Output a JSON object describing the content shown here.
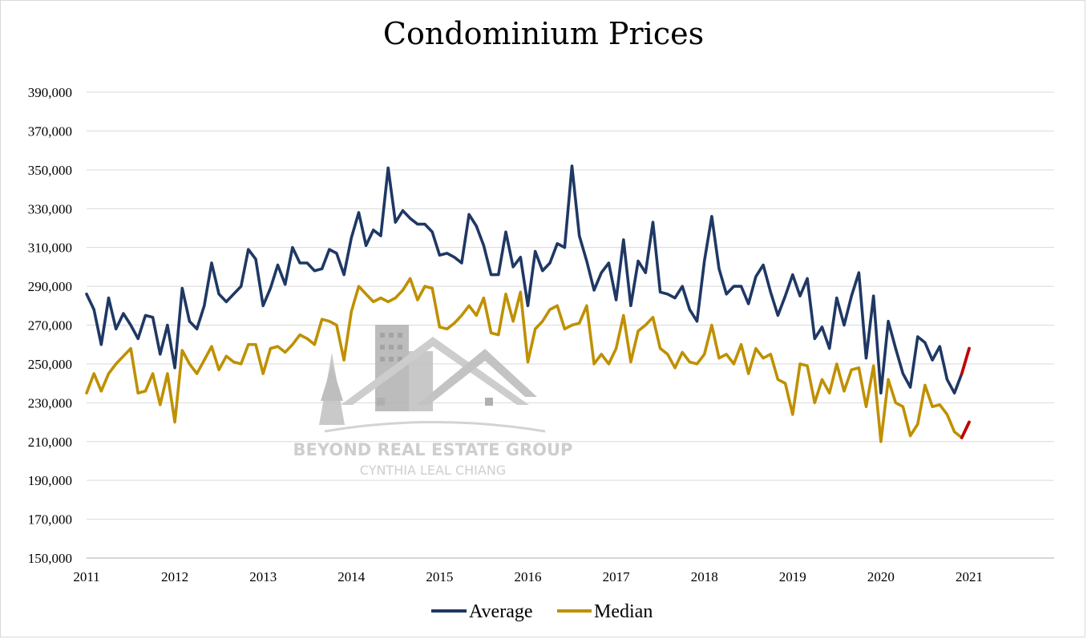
{
  "chart_data": {
    "type": "line",
    "title": "Condominium Prices",
    "xlabel": "",
    "ylabel": "",
    "ylim": [
      150000,
      390000
    ],
    "y_ticks": [
      "150,000",
      "170,000",
      "190,000",
      "210,000",
      "230,000",
      "250,000",
      "270,000",
      "290,000",
      "310,000",
      "330,000",
      "350,000",
      "370,000",
      "390,000"
    ],
    "x_ticks": [
      "2011",
      "2012",
      "2013",
      "2014",
      "2015",
      "2016",
      "2017",
      "2018",
      "2019",
      "2020",
      "2021"
    ],
    "x_start": "2011-01",
    "frequency": "monthly",
    "grid": true,
    "legend_position": "bottom",
    "colors": {
      "Average": "#1f3864",
      "Median": "#bf9000",
      "highlight": "#c00000"
    },
    "series": [
      {
        "name": "Average",
        "values": [
          286000,
          278000,
          260000,
          284000,
          268000,
          276000,
          270000,
          263000,
          275000,
          274000,
          255000,
          270000,
          248000,
          289000,
          272000,
          268000,
          280000,
          302000,
          286000,
          282000,
          286000,
          290000,
          309000,
          304000,
          280000,
          289000,
          301000,
          291000,
          310000,
          302000,
          302000,
          298000,
          299000,
          309000,
          307000,
          296000,
          315000,
          328000,
          311000,
          319000,
          316000,
          351000,
          323000,
          329000,
          325000,
          322000,
          322000,
          318000,
          306000,
          307000,
          305000,
          302000,
          327000,
          321000,
          311000,
          296000,
          296000,
          318000,
          300000,
          305000,
          280000,
          308000,
          298000,
          302000,
          312000,
          310000,
          352000,
          316000,
          303000,
          288000,
          297000,
          302000,
          283000,
          314000,
          280000,
          303000,
          297000,
          323000,
          287000,
          286000,
          284000,
          290000,
          278000,
          272000,
          303000,
          326000,
          299000,
          286000,
          290000,
          290000,
          281000,
          295000,
          301000,
          287000,
          275000,
          285000,
          296000,
          285000,
          294000,
          263000,
          269000,
          258000,
          284000,
          270000,
          285000,
          297000,
          253000,
          285000,
          235000,
          272000,
          258000,
          245000,
          238000,
          264000,
          261000,
          252000,
          259000,
          242000,
          235000,
          245000,
          258000
        ]
      },
      {
        "name": "Median",
        "values": [
          235000,
          245000,
          236000,
          245000,
          250000,
          254000,
          258000,
          235000,
          236000,
          245000,
          229000,
          245000,
          220000,
          257000,
          250000,
          245000,
          252000,
          259000,
          247000,
          254000,
          251000,
          250000,
          260000,
          260000,
          245000,
          258000,
          259000,
          256000,
          260000,
          265000,
          263000,
          260000,
          273000,
          272000,
          270000,
          252000,
          277000,
          290000,
          286000,
          282000,
          284000,
          282000,
          284000,
          288000,
          294000,
          283000,
          290000,
          289000,
          269000,
          268000,
          271000,
          275000,
          280000,
          275000,
          284000,
          266000,
          265000,
          286000,
          272000,
          287000,
          251000,
          268000,
          272000,
          278000,
          280000,
          268000,
          270000,
          271000,
          280000,
          250000,
          255000,
          250000,
          258000,
          275000,
          251000,
          267000,
          270000,
          274000,
          258000,
          255000,
          248000,
          256000,
          251000,
          250000,
          255000,
          270000,
          253000,
          255000,
          250000,
          260000,
          245000,
          258000,
          253000,
          255000,
          242000,
          240000,
          224000,
          250000,
          249000,
          230000,
          242000,
          235000,
          250000,
          236000,
          247000,
          248000,
          228000,
          249000,
          210000,
          242000,
          230000,
          228000,
          213000,
          219000,
          239000,
          228000,
          229000,
          224000,
          215000,
          212000,
          220000
        ]
      }
    ],
    "highlight": {
      "label": "",
      "from_index": 119,
      "to_index": 120
    }
  },
  "legend": {
    "items": [
      "Average",
      "Median"
    ]
  },
  "watermark": {
    "line1": "BEYOND REAL ESTATE GROUP",
    "line2": "CYNTHIA LEAL CHIANG"
  }
}
